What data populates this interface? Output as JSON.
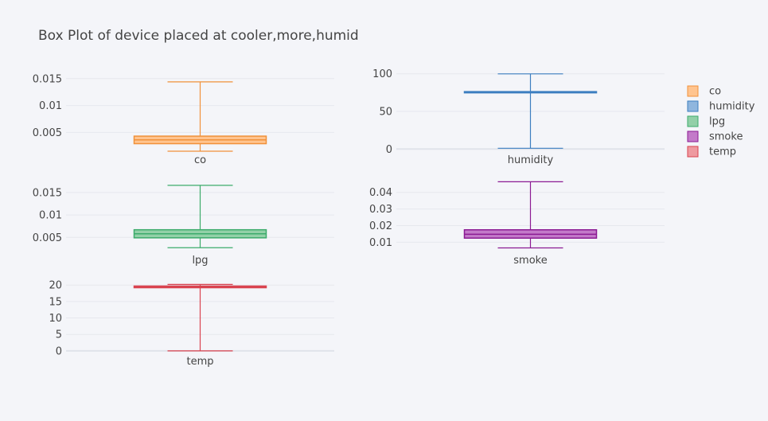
{
  "chart_data": {
    "type": "box",
    "title": "Box Plot of device placed at cooler,more,humid",
    "legend": {
      "placement": "top-right",
      "items": [
        {
          "name": "co",
          "color": "#f0913a"
        },
        {
          "name": "humidity",
          "color": "#3c7ec0"
        },
        {
          "name": "lpg",
          "color": "#3cab6b"
        },
        {
          "name": "smoke",
          "color": "#8b1a93"
        },
        {
          "name": "temp",
          "color": "#d9434f"
        }
      ]
    },
    "grid": true,
    "subplots": [
      {
        "name": "co",
        "category": "co",
        "color": "#f0913a",
        "fill": "#ffc48f",
        "ylim": [
          0.0012,
          0.0166
        ],
        "ticks": [
          0.005,
          0.01,
          0.015
        ],
        "tick_labels": [
          "0.005",
          "0.01",
          "0.015"
        ],
        "box": {
          "min": 0.0015,
          "q1": 0.0029,
          "median": 0.0036,
          "q3": 0.0043,
          "max": 0.0144
        }
      },
      {
        "name": "humidity",
        "category": "humidity",
        "color": "#3c7ec0",
        "fill": "#8fb6de",
        "ylim": [
          -5,
          105
        ],
        "ticks": [
          0,
          50,
          100
        ],
        "tick_labels": [
          "0",
          "50",
          "100"
        ],
        "box": {
          "min": 1,
          "q1": 75.3,
          "median": 75.8,
          "q3": 76.3,
          "max": 99.9
        }
      },
      {
        "name": "lpg",
        "category": "lpg",
        "color": "#3cab6b",
        "fill": "#92d0a8",
        "ylim": [
          0.0015,
          0.018
        ],
        "ticks": [
          0.005,
          0.01,
          0.015
        ],
        "tick_labels": [
          "0.005",
          "0.01",
          "0.015"
        ],
        "box": {
          "min": 0.0027,
          "q1": 0.0049,
          "median": 0.0058,
          "q3": 0.0067,
          "max": 0.0166
        }
      },
      {
        "name": "smoke",
        "category": "smoke",
        "color": "#8b1a93",
        "fill": "#c37ac9",
        "ylim": [
          0.0035,
          0.048
        ],
        "ticks": [
          0.01,
          0.02,
          0.03,
          0.04
        ],
        "tick_labels": [
          "0.01",
          "0.02",
          "0.03",
          "0.04"
        ],
        "box": {
          "min": 0.0066,
          "q1": 0.0125,
          "median": 0.0148,
          "q3": 0.0175,
          "max": 0.0464
        }
      },
      {
        "name": "temp",
        "category": "temp",
        "color": "#d9434f",
        "fill": "#ee9aa0",
        "ylim": [
          -1,
          21.5
        ],
        "ticks": [
          0,
          5,
          10,
          15,
          20
        ],
        "tick_labels": [
          "0",
          "5",
          "10",
          "15",
          "20"
        ],
        "box": {
          "min": 0,
          "q1": 19.2,
          "median": 19.4,
          "q3": 19.7,
          "max": 20.2
        }
      }
    ]
  }
}
